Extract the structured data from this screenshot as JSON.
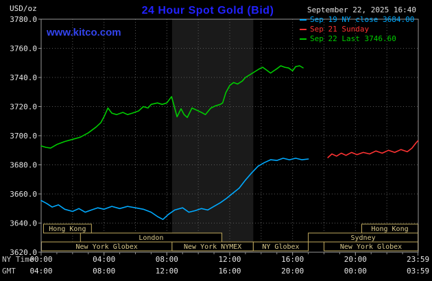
{
  "header": {
    "units_label": "USD/oz",
    "title": "24 Hour Spot Gold (Bid)",
    "datetime": "September 22, 2025 16:40",
    "watermark": "www.kitco.com"
  },
  "legend": {
    "items": [
      {
        "label": "Sep 19 NY close 3684.00",
        "color": "#00aaff"
      },
      {
        "label": "Sep 21 Sunday",
        "color": "#ff3333"
      },
      {
        "label": "Sep 22 Last 3746.60",
        "color": "#00cc00"
      }
    ]
  },
  "axes": {
    "ny_row_label": "NY Time",
    "gmt_row_label": "GMT",
    "y_ticks": [
      {
        "value": 3780,
        "label": "3780.0"
      },
      {
        "value": 3760,
        "label": "3760.0"
      },
      {
        "value": 3740,
        "label": "3740.0"
      },
      {
        "value": 3720,
        "label": "3720.0"
      },
      {
        "value": 3700,
        "label": "3700.0"
      },
      {
        "value": 3680,
        "label": "3680.0"
      },
      {
        "value": 3660,
        "label": "3660.0"
      },
      {
        "value": 3640,
        "label": "3640.0"
      },
      {
        "value": 3620,
        "label": "3620.0"
      }
    ],
    "x_ticks": [
      {
        "hour": 0,
        "ny": "00:00",
        "gmt": "04:00"
      },
      {
        "hour": 4,
        "ny": "04:00",
        "gmt": "08:00"
      },
      {
        "hour": 8,
        "ny": "08:00",
        "gmt": "12:00"
      },
      {
        "hour": 12,
        "ny": "12:00",
        "gmt": "16:00"
      },
      {
        "hour": 16,
        "ny": "16:00",
        "gmt": "20:00"
      },
      {
        "hour": 20,
        "ny": "20:00",
        "gmt": "00:00"
      },
      {
        "hour": 23.98,
        "ny": "23:59",
        "gmt": "03:59"
      }
    ]
  },
  "colors": {
    "background": "#000000",
    "title": "#2222ff",
    "watermark": "#3344ee",
    "grid": "#5a5a5a",
    "border": "#999999",
    "axis_text": "#e8e8e8",
    "session": "#c2ab5f",
    "session_text": "#d9c98c",
    "nymex_band": "#1a1a1a",
    "sep19": "#00aaff",
    "sep21": "#ff3333",
    "sep22": "#00cc00"
  },
  "chart_data": {
    "type": "line",
    "title": "24 Hour Spot Gold (Bid)",
    "ylabel": "USD/oz",
    "xlabel": "NY Time / GMT",
    "xlim": [
      0,
      24
    ],
    "ylim": [
      3620,
      3780
    ],
    "grid": true,
    "legend_position": "top-right",
    "series": [
      {
        "name": "Sep 19 NY close 3684.00",
        "color": "#00aaff",
        "points": [
          [
            0,
            3655.5
          ],
          [
            0.35,
            3653.5
          ],
          [
            0.7,
            3651
          ],
          [
            1.1,
            3652.5
          ],
          [
            1.5,
            3649.5
          ],
          [
            2,
            3648
          ],
          [
            2.4,
            3650
          ],
          [
            2.8,
            3647.5
          ],
          [
            3.2,
            3649
          ],
          [
            3.6,
            3650.5
          ],
          [
            4,
            3649.5
          ],
          [
            4.5,
            3651.5
          ],
          [
            5,
            3650
          ],
          [
            5.5,
            3651.5
          ],
          [
            6,
            3650.5
          ],
          [
            6.5,
            3649.5
          ],
          [
            7,
            3647.5
          ],
          [
            7.4,
            3644.5
          ],
          [
            7.75,
            3642.5
          ],
          [
            8.1,
            3646
          ],
          [
            8.5,
            3649
          ],
          [
            9,
            3650.5
          ],
          [
            9.4,
            3647.5
          ],
          [
            9.8,
            3648.5
          ],
          [
            10.2,
            3650
          ],
          [
            10.6,
            3649
          ],
          [
            11,
            3651.5
          ],
          [
            11.4,
            3654
          ],
          [
            11.8,
            3657
          ],
          [
            12.2,
            3660.5
          ],
          [
            12.6,
            3664
          ],
          [
            13,
            3669.5
          ],
          [
            13.4,
            3674.5
          ],
          [
            13.8,
            3679
          ],
          [
            14.2,
            3681.5
          ],
          [
            14.6,
            3683.5
          ],
          [
            15,
            3683
          ],
          [
            15.4,
            3684.5
          ],
          [
            15.8,
            3683.5
          ],
          [
            16.2,
            3684.5
          ],
          [
            16.6,
            3683.5
          ],
          [
            17,
            3684
          ]
        ]
      },
      {
        "name": "Sep 21 Sunday",
        "color": "#ff3333",
        "points": [
          [
            18.25,
            3685
          ],
          [
            18.5,
            3687.5
          ],
          [
            18.8,
            3686
          ],
          [
            19.1,
            3688
          ],
          [
            19.4,
            3686.5
          ],
          [
            19.75,
            3688.5
          ],
          [
            20.1,
            3687
          ],
          [
            20.5,
            3688.5
          ],
          [
            20.9,
            3687.5
          ],
          [
            21.3,
            3689.5
          ],
          [
            21.7,
            3688
          ],
          [
            22.1,
            3690
          ],
          [
            22.5,
            3688.5
          ],
          [
            22.9,
            3690.5
          ],
          [
            23.3,
            3689
          ],
          [
            23.6,
            3691.5
          ],
          [
            23.85,
            3695
          ],
          [
            23.98,
            3696.5
          ]
        ]
      },
      {
        "name": "Sep 22 Last 3746.60",
        "color": "#00cc00",
        "points": [
          [
            0,
            3693
          ],
          [
            0.3,
            3692
          ],
          [
            0.6,
            3691.5
          ],
          [
            1,
            3694
          ],
          [
            1.5,
            3696
          ],
          [
            2,
            3697.5
          ],
          [
            2.5,
            3699
          ],
          [
            3,
            3702
          ],
          [
            3.5,
            3706
          ],
          [
            3.8,
            3709
          ],
          [
            4,
            3713
          ],
          [
            4.25,
            3719
          ],
          [
            4.5,
            3715.5
          ],
          [
            4.8,
            3714.5
          ],
          [
            5.2,
            3716
          ],
          [
            5.5,
            3714.5
          ],
          [
            5.8,
            3715.5
          ],
          [
            6.2,
            3717
          ],
          [
            6.5,
            3720
          ],
          [
            6.8,
            3719
          ],
          [
            7,
            3721.5
          ],
          [
            7.4,
            3722.5
          ],
          [
            7.7,
            3721.5
          ],
          [
            8,
            3722.5
          ],
          [
            8.3,
            3726.8
          ],
          [
            8.5,
            3719
          ],
          [
            8.65,
            3713
          ],
          [
            8.9,
            3718.5
          ],
          [
            9.1,
            3714.5
          ],
          [
            9.3,
            3712.5
          ],
          [
            9.6,
            3719
          ],
          [
            9.9,
            3717.5
          ],
          [
            10.2,
            3716
          ],
          [
            10.45,
            3714.5
          ],
          [
            10.8,
            3719
          ],
          [
            11.1,
            3720.5
          ],
          [
            11.4,
            3721.5
          ],
          [
            11.55,
            3722.5
          ],
          [
            11.75,
            3729.5
          ],
          [
            12,
            3734.5
          ],
          [
            12.25,
            3736.5
          ],
          [
            12.5,
            3735.5
          ],
          [
            12.8,
            3737.5
          ],
          [
            13,
            3740
          ],
          [
            13.3,
            3742
          ],
          [
            13.6,
            3744
          ],
          [
            13.9,
            3746
          ],
          [
            14.1,
            3747
          ],
          [
            14.35,
            3745
          ],
          [
            14.6,
            3743
          ],
          [
            14.8,
            3744.5
          ],
          [
            15,
            3746
          ],
          [
            15.25,
            3748
          ],
          [
            15.5,
            3747
          ],
          [
            15.75,
            3746.5
          ],
          [
            16,
            3744.5
          ],
          [
            16.2,
            3747.5
          ],
          [
            16.45,
            3748
          ],
          [
            16.67,
            3746.6
          ]
        ]
      }
    ],
    "sessions": [
      {
        "label": "Hong Kong",
        "row": 0,
        "start": 0.15,
        "end": 3.2
      },
      {
        "label": "Hong Kong",
        "row": 0,
        "start": 20.4,
        "end": 23.98
      },
      {
        "label": "London",
        "row": 1,
        "start": 2.5,
        "end": 11.5
      },
      {
        "label": "Sydney",
        "row": 1,
        "start": 17.0,
        "end": 23.98
      },
      {
        "label": "New York Globex",
        "row": 2,
        "start": 0.02,
        "end": 8.33
      },
      {
        "label": "New York NYMEX",
        "row": 2,
        "start": 8.33,
        "end": 13.5
      },
      {
        "label": "NY Globex",
        "row": 2,
        "start": 13.5,
        "end": 17.0
      },
      {
        "label": "New York Globex",
        "row": 2,
        "start": 18.0,
        "end": 23.98
      }
    ],
    "nymex_band": {
      "start_hour": 8.33,
      "end_hour": 13.5
    }
  }
}
